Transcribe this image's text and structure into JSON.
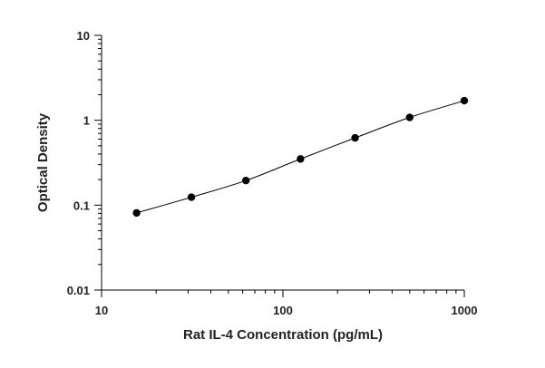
{
  "chart_data": {
    "type": "scatter",
    "xlabel": "Rat IL-4 Concentration (pg/mL)",
    "ylabel": "Optical Density",
    "xscale": "log",
    "yscale": "log",
    "xlim": [
      10,
      1000
    ],
    "ylim": [
      0.01,
      10
    ],
    "x_ticks": [
      {
        "value": 10,
        "label": "10"
      },
      {
        "value": 100,
        "label": "100"
      },
      {
        "value": 1000,
        "label": "1000"
      }
    ],
    "y_ticks": [
      {
        "value": 0.01,
        "label": "0.01"
      },
      {
        "value": 0.1,
        "label": "0.1"
      },
      {
        "value": 1,
        "label": "1"
      },
      {
        "value": 10,
        "label": "10"
      }
    ],
    "grid": false,
    "fit_curve": true,
    "marker_color": "#000000",
    "points": [
      {
        "x": 15.6,
        "y": 0.081
      },
      {
        "x": 31.3,
        "y": 0.124
      },
      {
        "x": 62.5,
        "y": 0.195
      },
      {
        "x": 125,
        "y": 0.35
      },
      {
        "x": 250,
        "y": 0.62
      },
      {
        "x": 500,
        "y": 1.08
      },
      {
        "x": 1000,
        "y": 1.7
      }
    ]
  }
}
